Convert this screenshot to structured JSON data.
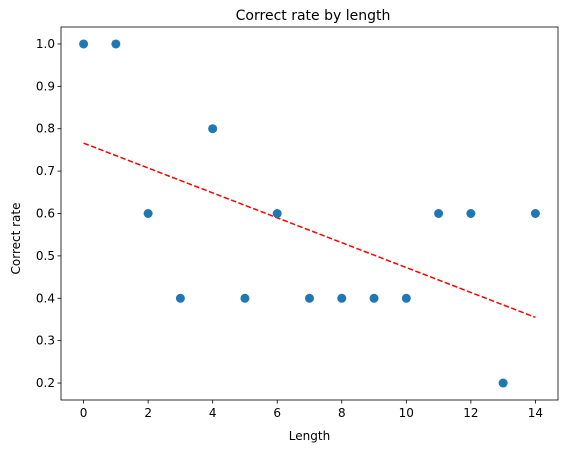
{
  "chart_data": {
    "type": "scatter",
    "title": "Correct rate by length",
    "xlabel": "Length",
    "ylabel": "Correct rate",
    "xlim": [
      -0.7,
      14.7
    ],
    "ylim": [
      0.16,
      1.04
    ],
    "xticks": [
      0,
      2,
      4,
      6,
      8,
      10,
      12,
      14
    ],
    "yticks": [
      0.2,
      0.3,
      0.4,
      0.5,
      0.6,
      0.7,
      0.8,
      0.9,
      1.0
    ],
    "grid": false,
    "points": {
      "x": [
        0,
        1,
        2,
        3,
        4,
        5,
        6,
        7,
        8,
        9,
        10,
        11,
        12,
        13,
        14
      ],
      "y": [
        1.0,
        1.0,
        0.6,
        0.4,
        0.8,
        0.4,
        0.6,
        0.4,
        0.4,
        0.4,
        0.4,
        0.6,
        0.6,
        0.2,
        0.6
      ],
      "color": "#1f77b4"
    },
    "trendline": {
      "x": [
        0,
        14
      ],
      "y": [
        0.766,
        0.355
      ],
      "color": "#ff0000",
      "style": "dashed"
    }
  }
}
